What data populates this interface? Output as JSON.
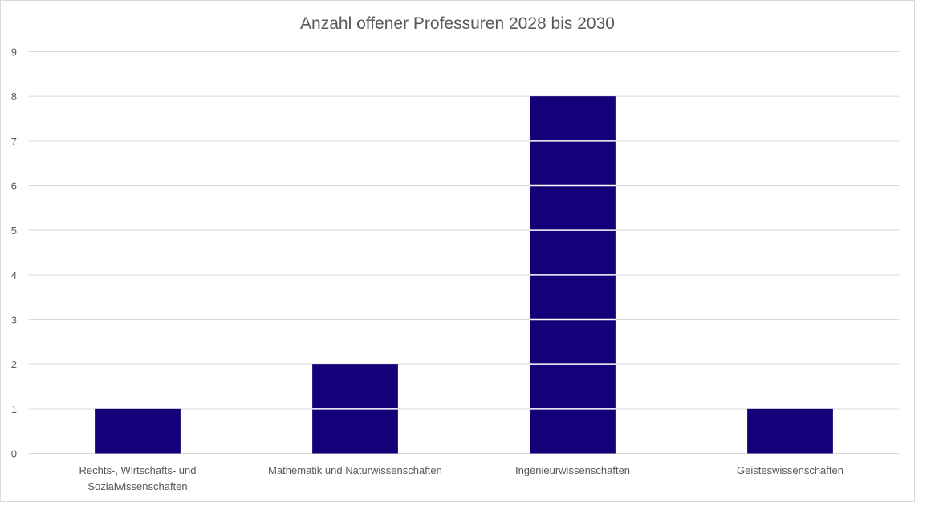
{
  "chart_data": {
    "type": "bar",
    "title": "Anzahl offener Professuren 2028 bis 2030",
    "xlabel": "",
    "ylabel": "",
    "categories": [
      [
        "Rechts-, Wirtschafts- und",
        "Sozialwissenschaften"
      ],
      [
        "Mathematik und Naturwissenschaften"
      ],
      [
        "Ingenieurwissenschaften"
      ],
      [
        "Geisteswissenschaften"
      ]
    ],
    "values": [
      1,
      2,
      8,
      1
    ],
    "ylim": [
      0,
      9
    ],
    "yticks": [
      "0",
      "1",
      "2",
      "3",
      "4",
      "5",
      "6",
      "7",
      "8",
      "9"
    ],
    "grid": true,
    "legend": "none",
    "colors": {
      "bar": "#140078",
      "grid": "#d9d9d9",
      "title": "#595959",
      "tick": "#595959",
      "frame": "#d9d9d9"
    }
  }
}
